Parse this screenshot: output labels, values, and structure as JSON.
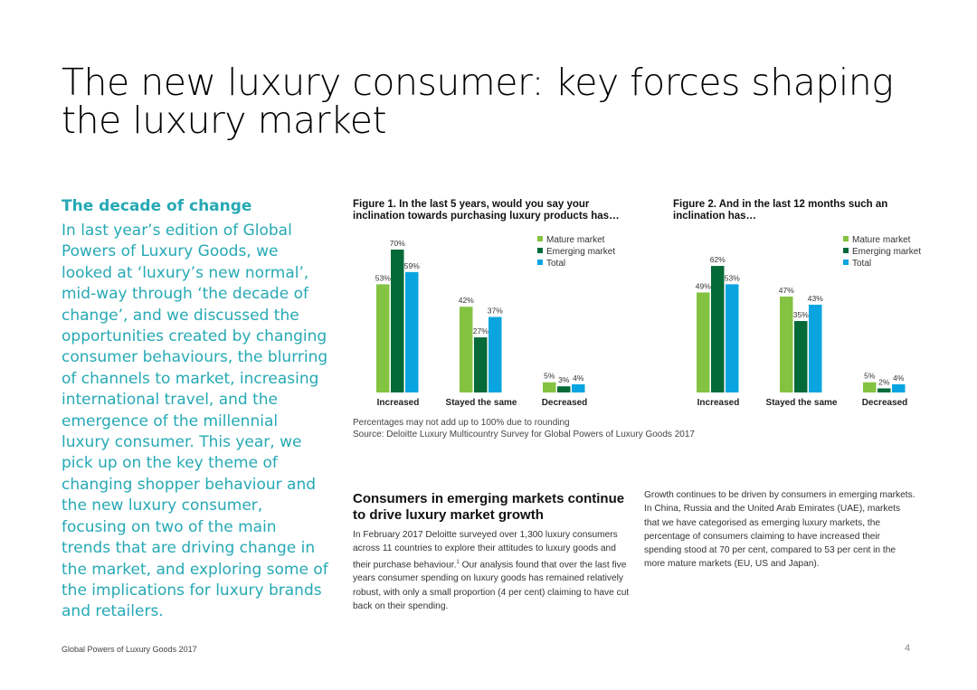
{
  "page": {
    "title": "The new luxury consumer: key forces shaping the luxury market",
    "footer": "Global Powers of Luxury Goods 2017",
    "page_number": "4"
  },
  "left": {
    "heading": "The decade of change",
    "body": "In last year’s edition of Global Powers of Luxury Goods, we looked at ‘luxury’s new normal’, mid-way through ‘the decade of change’, and we discussed the opportunities created by changing consumer behaviours, the blurring of channels to market, increasing international travel, and the emergence of the millennial luxury consumer. This year, we pick up on the key theme of changing shopper behaviour and the new luxury consumer, focusing on two of the main trends that are driving change in the market, and exploring some of the implications for luxury brands and retailers."
  },
  "colors": {
    "mature": "#84c341",
    "emerging": "#046a38",
    "total": "#0aa5e0"
  },
  "chart_data": [
    {
      "type": "bar",
      "title": "Figure 1. In the last 5 years, would you say your inclination towards purchasing luxury products has…",
      "categories": [
        "Increased",
        "Stayed the same",
        "Decreased"
      ],
      "series": [
        {
          "name": "Mature market",
          "values": [
            53,
            42,
            5
          ]
        },
        {
          "name": "Emerging market",
          "values": [
            70,
            27,
            3
          ]
        },
        {
          "name": "Total",
          "values": [
            59,
            37,
            4
          ]
        }
      ],
      "value_labels": [
        [
          "53%",
          "42%",
          "5%"
        ],
        [
          "70%",
          "27%",
          "3%"
        ],
        [
          "59%",
          "37%",
          "4%"
        ]
      ],
      "legend_position": "top-right",
      "ylim": [
        0,
        70
      ],
      "grid": false
    },
    {
      "type": "bar",
      "title": "Figure 2. And in the last 12 months such an inclination has…",
      "categories": [
        "Increased",
        "Stayed the same",
        "Decreased"
      ],
      "series": [
        {
          "name": "Mature market",
          "values": [
            49,
            47,
            5
          ]
        },
        {
          "name": "Emerging market",
          "values": [
            62,
            35,
            2
          ]
        },
        {
          "name": "Total",
          "values": [
            53,
            43,
            4
          ]
        }
      ],
      "value_labels": [
        [
          "49%",
          "47%",
          "5%"
        ],
        [
          "62%",
          "35%",
          "2%"
        ],
        [
          "53%",
          "43%",
          "4%"
        ]
      ],
      "legend_position": "top-right",
      "ylim": [
        0,
        70
      ],
      "grid": false
    }
  ],
  "notes": {
    "rounding": "Percentages may not add up to 100% due to rounding",
    "source": "Source: Deloitte Luxury Multicountry Survey for Global Powers of Luxury Goods 2017"
  },
  "section": {
    "heading": "Consumers in emerging markets continue to drive luxury market growth",
    "para1_before": "In February 2017 Deloitte surveyed over 1,300 luxury consumers across 11 countries to explore their attitudes to luxury goods and their purchase behaviour.",
    "para1_footnote": "1",
    "para1_after": " Our analysis found that over the last five years consumer spending on luxury goods has remained relatively robust, with only a small proportion (4 per cent) claiming to have cut back on their spending.",
    "para2": "Growth continues to be driven by consumers in emerging markets. In China, Russia and the United Arab Emirates (UAE), markets that we have categorised as emerging luxury markets, the percentage of consumers claiming to have increased their spending stood at 70 per cent, compared to 53 per cent in the more mature markets (EU, US and Japan)."
  }
}
